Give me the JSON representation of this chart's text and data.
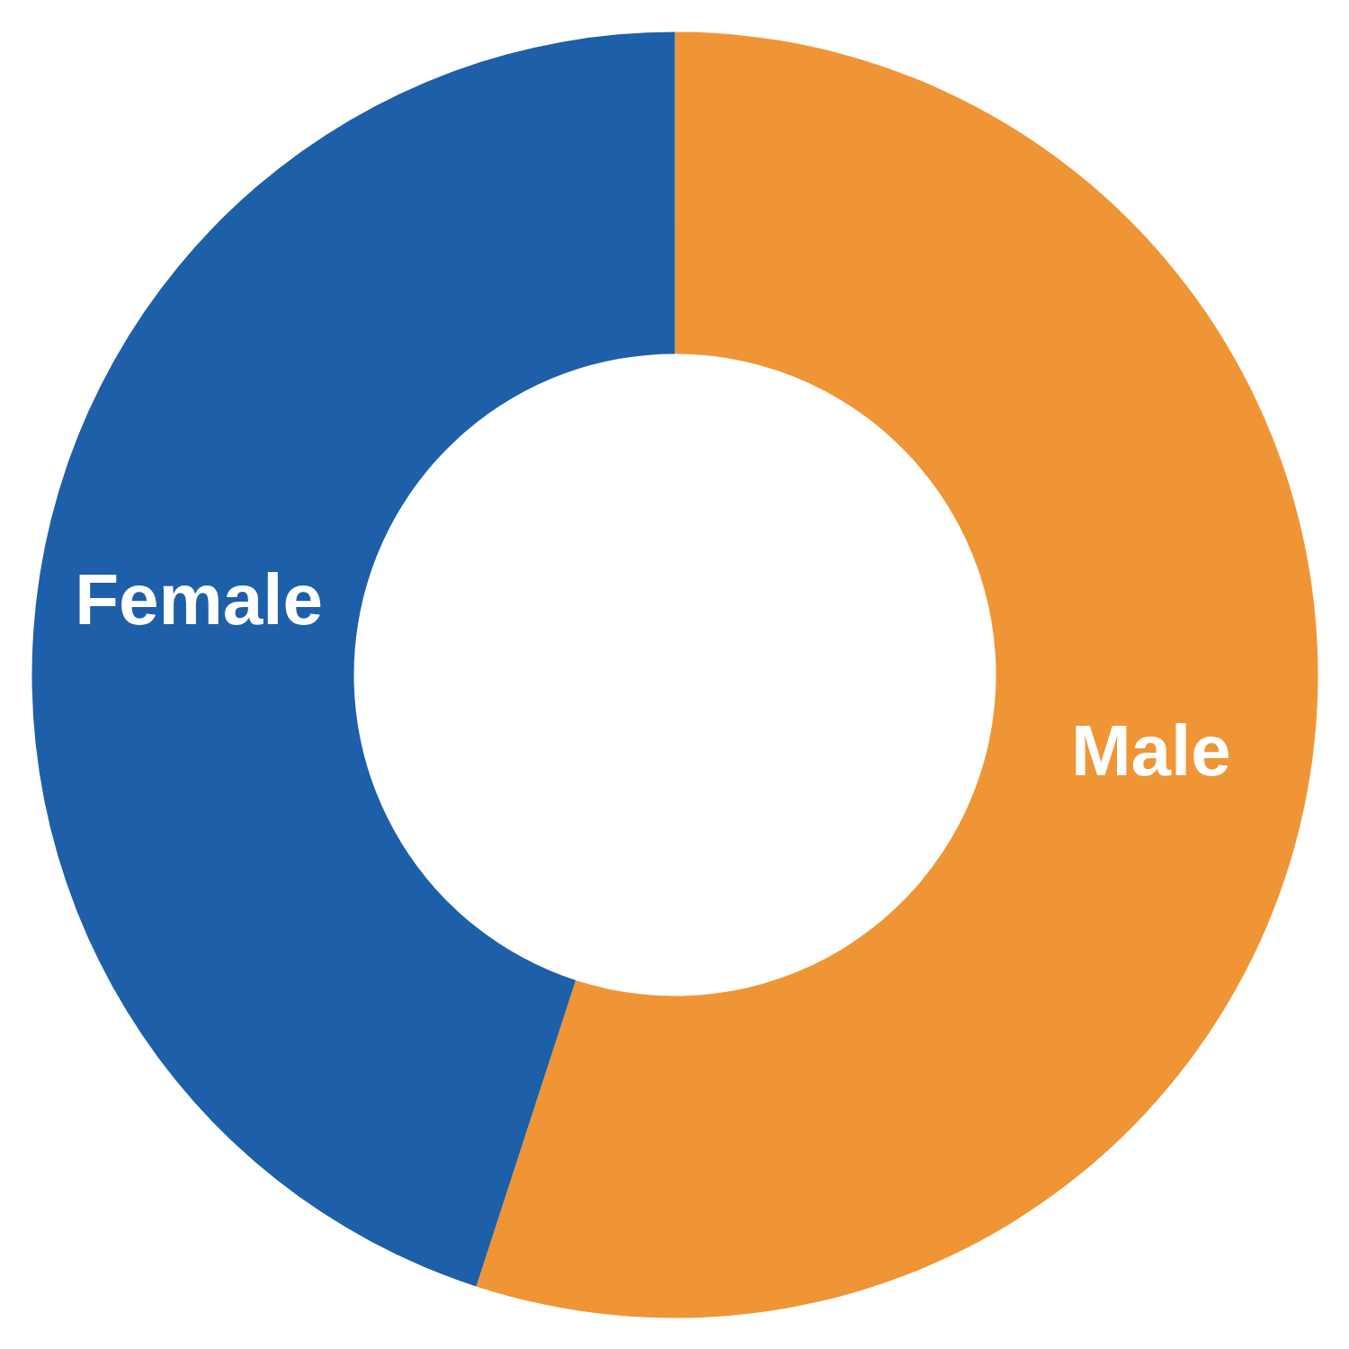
{
  "chart_data": {
    "type": "donut",
    "categories": [
      "Male",
      "Female"
    ],
    "values": [
      55,
      45
    ],
    "colors": [
      "#f09535",
      "#1d5fa9"
    ]
  }
}
